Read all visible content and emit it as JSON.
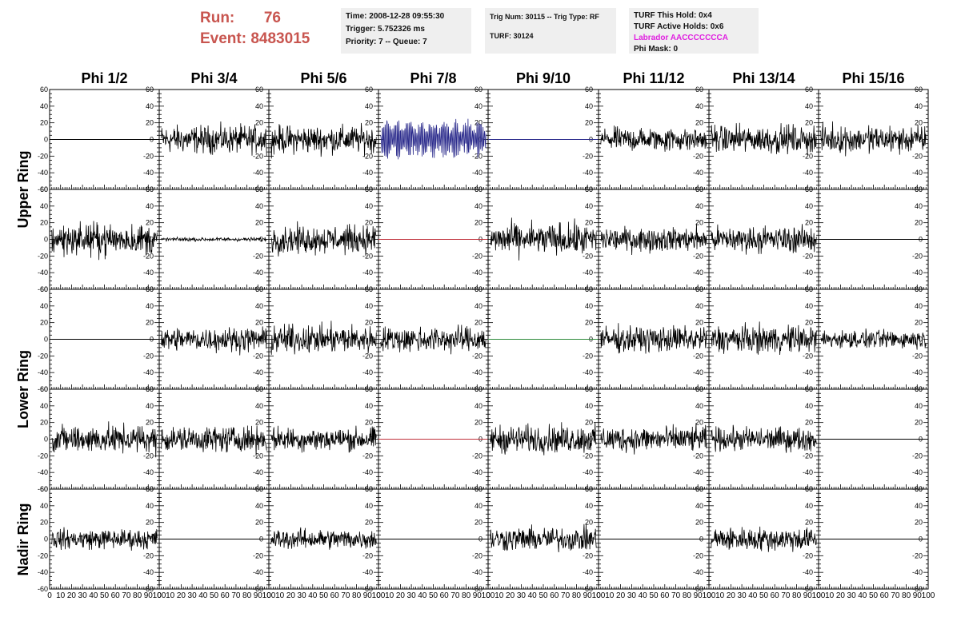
{
  "header": {
    "run_label": "Run:",
    "run_value": "76",
    "event_label": "Event:",
    "event_value": "8483015",
    "time": "Time: 2008-12-28 09:55:30",
    "trigger": "Trigger: 5.752326 ms",
    "priority": "Priority: 7 -- Queue: 7",
    "trig_num": "Trig Num: 30115 -- Trig Type: RF",
    "turf": "TURF: 30124",
    "turf_this_hold": "TURF This Hold: 0x4",
    "turf_active_holds": "TURF Active Holds: 0x6",
    "labrador": "Labrador AACCCCCCCA",
    "phi_mask": "Phi Mask: 0"
  },
  "chart_data": {
    "type": "line",
    "columns": [
      "Phi 1/2",
      "Phi 3/4",
      "Phi 5/6",
      "Phi 7/8",
      "Phi 9/10",
      "Phi 11/12",
      "Phi 13/14",
      "Phi 15/16"
    ],
    "rows": [
      {
        "label": "Upper Ring",
        "span": 2
      },
      {
        "label": "Lower Ring",
        "span": 2
      },
      {
        "label": "Nadir Ring",
        "span": 1
      }
    ],
    "xlim": [
      0,
      100
    ],
    "ylim": [
      -60,
      60
    ],
    "xticks": [
      "0",
      "10",
      "20",
      "30",
      "40",
      "50",
      "60",
      "70",
      "80",
      "90",
      "100"
    ],
    "yticks": [
      "60",
      "40",
      "20",
      "0",
      "-20",
      "-40",
      "-60"
    ],
    "panels": [
      [
        {
          "kind": "flat",
          "color": "#000000"
        },
        {
          "kind": "noise",
          "amplitude": 14,
          "color": "#000000"
        },
        {
          "kind": "noise",
          "amplitude": 14,
          "color": "#000000"
        },
        {
          "kind": "burst",
          "amplitude": 22,
          "color": "#2b2b8c"
        },
        {
          "kind": "flat",
          "color": "#2b2b8c"
        },
        {
          "kind": "noise",
          "amplitude": 12,
          "color": "#000000"
        },
        {
          "kind": "noise",
          "amplitude": 14,
          "color": "#000000"
        },
        {
          "kind": "noise",
          "amplitude": 14,
          "color": "#000000"
        }
      ],
      [
        {
          "kind": "noise",
          "amplitude": 16,
          "color": "#000000"
        },
        {
          "kind": "noise",
          "amplitude": 2,
          "color": "#000000"
        },
        {
          "kind": "noise",
          "amplitude": 14,
          "color": "#000000"
        },
        {
          "kind": "flat",
          "color": "#c0303a"
        },
        {
          "kind": "noise",
          "amplitude": 16,
          "color": "#000000"
        },
        {
          "kind": "noise",
          "amplitude": 12,
          "color": "#000000"
        },
        {
          "kind": "noise",
          "amplitude": 13,
          "color": "#000000"
        },
        {
          "kind": "flat",
          "color": "#000000"
        }
      ],
      [
        {
          "kind": "flat",
          "color": "#000000"
        },
        {
          "kind": "noise",
          "amplitude": 12,
          "color": "#000000"
        },
        {
          "kind": "noise",
          "amplitude": 14,
          "color": "#000000"
        },
        {
          "kind": "noise",
          "amplitude": 13,
          "color": "#000000"
        },
        {
          "kind": "flat",
          "color": "#2e8b3a"
        },
        {
          "kind": "noise",
          "amplitude": 13,
          "color": "#000000"
        },
        {
          "kind": "noise",
          "amplitude": 14,
          "color": "#000000"
        },
        {
          "kind": "noise",
          "amplitude": 9,
          "color": "#000000"
        }
      ],
      [
        {
          "kind": "noise",
          "amplitude": 14,
          "color": "#000000"
        },
        {
          "kind": "noise",
          "amplitude": 13,
          "color": "#000000"
        },
        {
          "kind": "noise",
          "amplitude": 12,
          "color": "#000000"
        },
        {
          "kind": "flat",
          "color": "#c0303a"
        },
        {
          "kind": "noise",
          "amplitude": 14,
          "color": "#000000"
        },
        {
          "kind": "noise",
          "amplitude": 13,
          "color": "#000000"
        },
        {
          "kind": "noise",
          "amplitude": 12,
          "color": "#000000"
        },
        {
          "kind": "flat",
          "color": "#000000"
        }
      ],
      [
        {
          "kind": "noise",
          "amplitude": 10,
          "color": "#000000"
        },
        {
          "kind": "flat",
          "color": "#000000"
        },
        {
          "kind": "noise",
          "amplitude": 10,
          "color": "#000000"
        },
        {
          "kind": "flat",
          "color": "#000000"
        },
        {
          "kind": "noise",
          "amplitude": 12,
          "color": "#000000"
        },
        {
          "kind": "flat",
          "color": "#000000"
        },
        {
          "kind": "noise",
          "amplitude": 12,
          "color": "#000000"
        },
        {
          "kind": "flat",
          "color": "#000000"
        }
      ]
    ]
  }
}
